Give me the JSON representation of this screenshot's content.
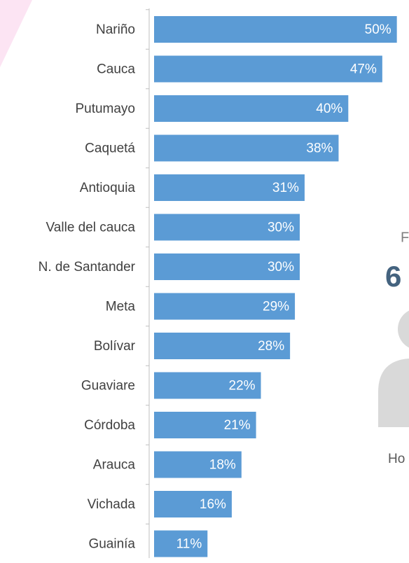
{
  "chart_data": {
    "type": "bar",
    "orientation": "horizontal",
    "categories": [
      "Nariño",
      "Cauca",
      "Putumayo",
      "Caquetá",
      "Antioquia",
      "Valle del cauca",
      "N. de Santander",
      "Meta",
      "Bolívar",
      "Guaviare",
      "Córdoba",
      "Arauca",
      "Vichada",
      "Guainía"
    ],
    "values": [
      50,
      47,
      40,
      38,
      31,
      30,
      30,
      29,
      28,
      22,
      21,
      18,
      16,
      11
    ],
    "value_labels": [
      "50%",
      "47%",
      "40%",
      "38%",
      "31%",
      "30%",
      "30%",
      "29%",
      "28%",
      "22%",
      "21%",
      "18%",
      "16%",
      "11%"
    ],
    "color": "#5b9bd5",
    "xlim": [
      0,
      52.5
    ],
    "annotations": [
      "F",
      "6",
      "Ho"
    ]
  }
}
